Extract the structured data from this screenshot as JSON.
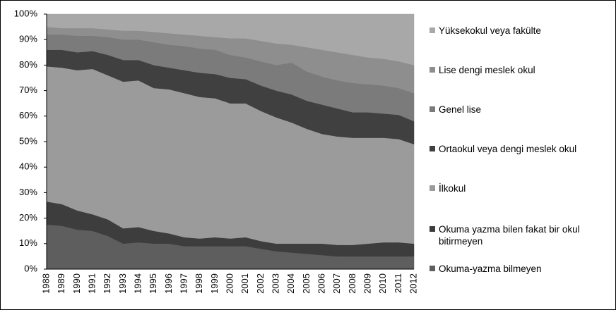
{
  "chart_data": {
    "type": "stacked-area",
    "categories": [
      "1988",
      "1989",
      "1990",
      "1991",
      "1992",
      "1993",
      "1994",
      "1995",
      "1996",
      "1997",
      "1998",
      "1999",
      "2000",
      "2001",
      "2002",
      "2003",
      "2004",
      "2005",
      "2006",
      "2007",
      "2008",
      "2009",
      "2010",
      "2011",
      "2012"
    ],
    "series": [
      {
        "name": "Okuma-yazma bilmeyen",
        "color": "#5e5e5e",
        "values": [
          17.5,
          17,
          15.5,
          15,
          13,
          10,
          10.5,
          10,
          10,
          9,
          9,
          9,
          9,
          9,
          8,
          7,
          6.5,
          6,
          5.5,
          5,
          5,
          5,
          5,
          5,
          5
        ]
      },
      {
        "name": "Okuma yazma bilen fakat bir okul bitirmeyen",
        "color": "#3d3d3d",
        "values": [
          9,
          8.5,
          7.5,
          6.5,
          6.5,
          6,
          6,
          5,
          4,
          3.5,
          3,
          3.5,
          3,
          3.5,
          3,
          3,
          3.5,
          4,
          4.5,
          4.5,
          4.5,
          5,
          5.5,
          5.5,
          5
        ]
      },
      {
        "name": "İlkokul",
        "color": "#9b9b9b",
        "values": [
          53,
          53.5,
          55,
          57,
          56.5,
          57.5,
          57.5,
          56,
          56.5,
          56.5,
          55.5,
          54.5,
          53,
          52.5,
          51,
          49.5,
          47.5,
          45,
          43,
          42.5,
          42,
          41.5,
          41,
          40.5,
          39
        ]
      },
      {
        "name": "Ortaokul veya dengi meslek okul",
        "color": "#404040",
        "values": [
          6.5,
          7,
          7,
          7,
          8,
          8.5,
          8,
          9,
          8.5,
          9,
          9.5,
          9.5,
          10,
          9.5,
          10,
          10.5,
          11,
          11,
          11.5,
          11,
          10,
          10,
          9.5,
          9.5,
          9
        ]
      },
      {
        "name": "Genel lise",
        "color": "#7b7b7b",
        "values": [
          6,
          6,
          6.5,
          6,
          7,
          8,
          8,
          9,
          9,
          9.5,
          9.5,
          9.5,
          9,
          8.5,
          9.5,
          10,
          12.5,
          11.5,
          11,
          11,
          11.5,
          11,
          11,
          10.5,
          11
        ]
      },
      {
        "name": "Lise dengi meslek okul",
        "color": "#8e8e8e",
        "values": [
          3,
          2.5,
          3,
          3,
          3,
          3.5,
          3.5,
          4,
          4.5,
          4.5,
          5,
          5,
          6.5,
          7.5,
          8,
          8.5,
          7,
          9.5,
          10.5,
          11,
          11,
          10.5,
          10.5,
          10.5,
          11
        ]
      },
      {
        "name": "Yüksekokul veya fakülte",
        "color": "#a8a8a8",
        "values": [
          5,
          5.5,
          5.5,
          5.5,
          6,
          6.5,
          6.5,
          7,
          7.5,
          8,
          8.5,
          9,
          9.5,
          9.5,
          10.5,
          11.5,
          12,
          13,
          14,
          15,
          16,
          17,
          17.5,
          18.5,
          20
        ]
      }
    ],
    "ylim": [
      0,
      100
    ],
    "yticks": [
      {
        "value": 0,
        "label": "0%"
      },
      {
        "value": 10,
        "label": "10%"
      },
      {
        "value": 20,
        "label": "20%"
      },
      {
        "value": 30,
        "label": "30%"
      },
      {
        "value": 40,
        "label": "40%"
      },
      {
        "value": 50,
        "label": "50%"
      },
      {
        "value": 60,
        "label": "60%"
      },
      {
        "value": 70,
        "label": "70%"
      },
      {
        "value": 80,
        "label": "80%"
      },
      {
        "value": 90,
        "label": "90%"
      },
      {
        "value": 100,
        "label": "100%"
      }
    ],
    "legend": "right"
  }
}
